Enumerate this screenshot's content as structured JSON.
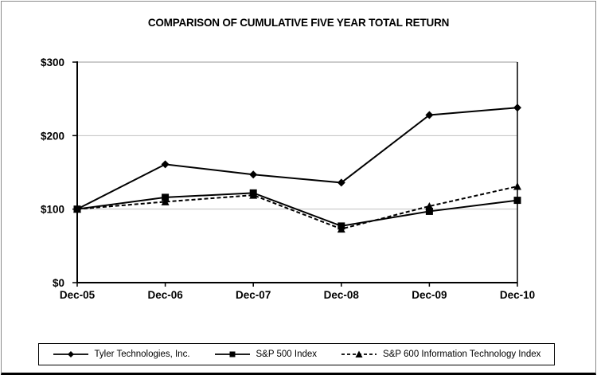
{
  "chart_data": {
    "type": "line",
    "title": "COMPARISON OF CUMULATIVE FIVE YEAR TOTAL RETURN",
    "categories": [
      "Dec-05",
      "Dec-06",
      "Dec-07",
      "Dec-08",
      "Dec-09",
      "Dec-10"
    ],
    "series": [
      {
        "name": "Tyler Technologies, Inc.",
        "values": [
          100,
          161,
          147,
          136,
          228,
          238
        ],
        "marker": "diamond",
        "line_style": "solid",
        "color": "#000000"
      },
      {
        "name": "S&P 500 Index",
        "values": [
          100,
          116,
          122,
          77,
          97,
          112
        ],
        "marker": "square",
        "line_style": "solid",
        "color": "#000000"
      },
      {
        "name": "S&P 600 Information Technology Index",
        "values": [
          100,
          110,
          119,
          73,
          104,
          131
        ],
        "marker": "triangle",
        "line_style": "dashed",
        "color": "#000000"
      }
    ],
    "y_ticks": [
      "$0",
      "$100",
      "$200",
      "$300"
    ],
    "y_tick_values": [
      0,
      100,
      200,
      300
    ],
    "ylim": [
      0,
      300
    ],
    "grid": "horizontal",
    "gridline_color": "#c0c0c0",
    "axis_color": "#000000",
    "legend_position": "bottom"
  }
}
